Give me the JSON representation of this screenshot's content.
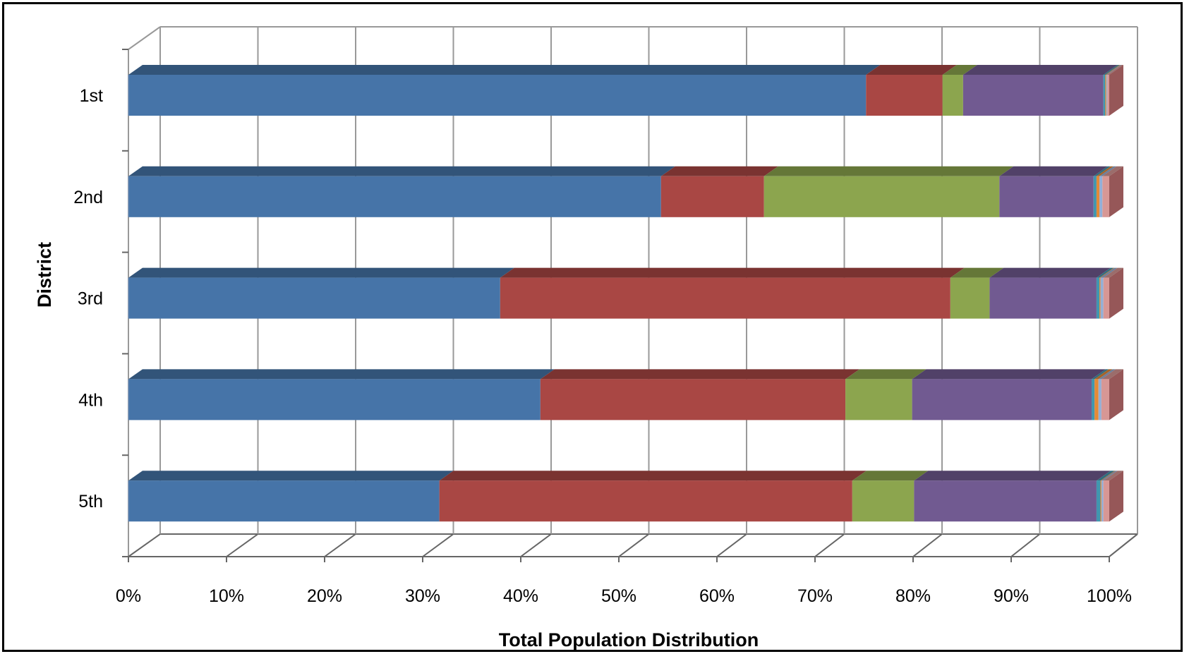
{
  "chart_data": {
    "type": "bar",
    "orientation": "horizontal",
    "stacking": "percent",
    "style": "3d",
    "title": "",
    "xlabel": "Total Population Distribution",
    "ylabel": "District",
    "categories": [
      "1st",
      "2nd",
      "3rd",
      "4th",
      "5th"
    ],
    "xlim": [
      0,
      100
    ],
    "x_ticks": [
      "0%",
      "10%",
      "20%",
      "30%",
      "40%",
      "50%",
      "60%",
      "70%",
      "80%",
      "90%",
      "100%"
    ],
    "grid": true,
    "legend": "none",
    "colors": {
      "blue": "#4674A8",
      "red": "#A94744",
      "green": "#8CA54E",
      "purple": "#715A91",
      "teal": "#4197AF",
      "orange": "#E48A37",
      "lightblue": "#94AFD6",
      "pink": "#D79795",
      "maroon": "#965758"
    },
    "series": [
      {
        "color": "blue",
        "values": [
          75.2,
          54.3,
          37.9,
          42.0,
          31.7
        ]
      },
      {
        "color": "red",
        "values": [
          7.8,
          10.5,
          45.9,
          31.1,
          42.1
        ]
      },
      {
        "color": "green",
        "values": [
          2.1,
          24.0,
          4.0,
          6.8,
          6.3
        ]
      },
      {
        "color": "purple",
        "values": [
          14.3,
          9.6,
          10.9,
          18.3,
          18.6
        ]
      },
      {
        "color": "teal",
        "values": [
          0.2,
          0.3,
          0.3,
          0.3,
          0.4
        ]
      },
      {
        "color": "orange",
        "values": [
          0.1,
          0.3,
          0.1,
          0.4,
          0.1
        ]
      },
      {
        "color": "lightblue",
        "values": [
          0.1,
          0.3,
          0.3,
          0.3,
          0.2
        ]
      },
      {
        "color": "pink",
        "values": [
          0.2,
          0.7,
          0.6,
          0.8,
          0.6
        ]
      },
      {
        "color": "maroon",
        "values": [
          0.0,
          0.0,
          0.0,
          0.0,
          0.0
        ]
      }
    ]
  }
}
